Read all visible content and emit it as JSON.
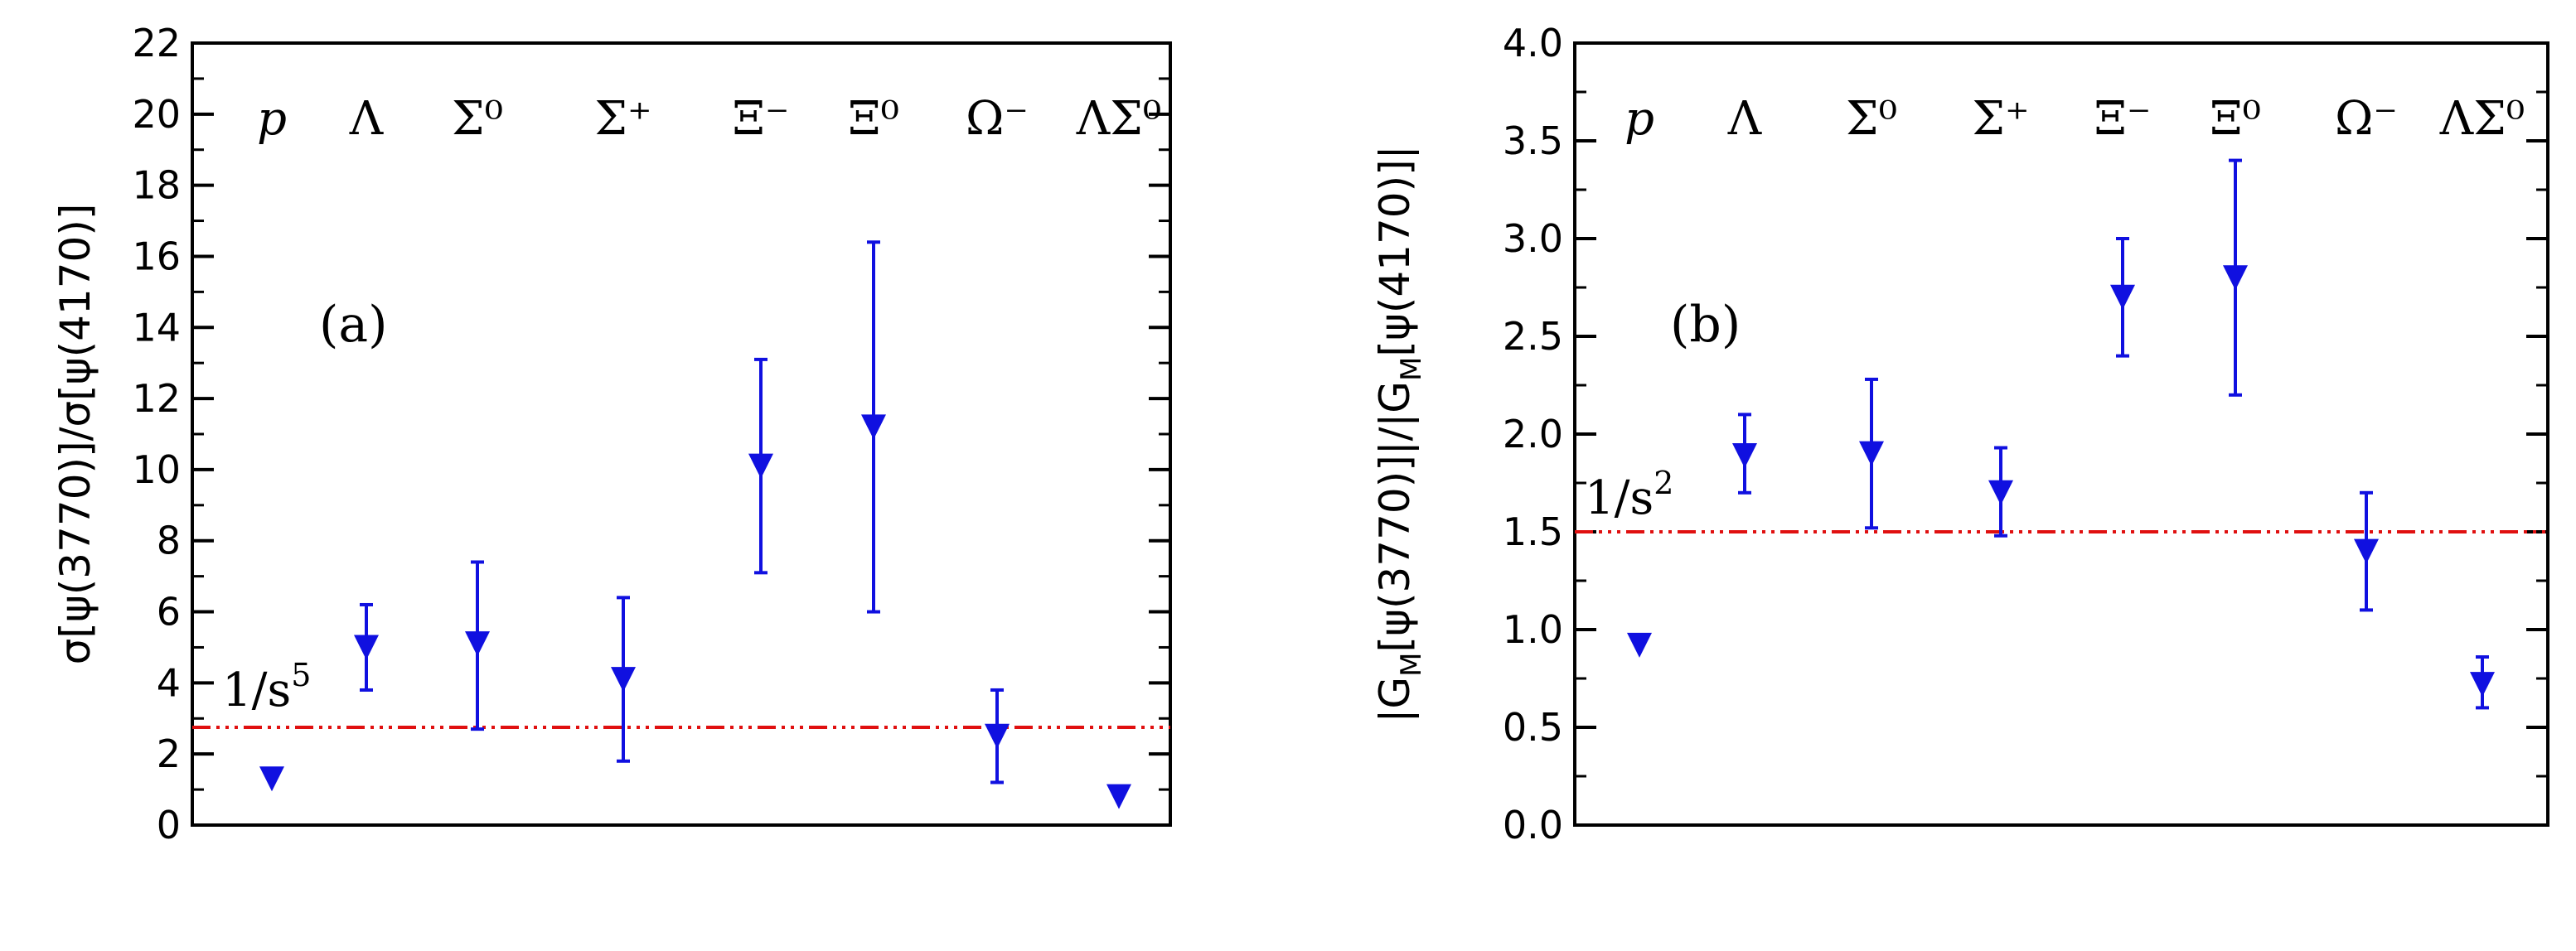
{
  "chart_data": [
    {
      "type": "scatter",
      "panel_label": "(a)",
      "ylabel": "σ[ψ(3770)]/σ[ψ(4170)]",
      "ylim": [
        0,
        22
      ],
      "yticks": [
        0,
        2,
        4,
        6,
        8,
        10,
        12,
        14,
        16,
        18,
        20,
        22
      ],
      "grid": false,
      "categories": [
        "p",
        "Λ",
        "Σ⁰",
        "Σ⁺",
        "Ξ⁻",
        "Ξ⁰",
        "Ω⁻",
        "ΛΣ⁰"
      ],
      "values": [
        1.3,
        5.0,
        5.1,
        4.1,
        10.1,
        11.2,
        2.5,
        0.8
      ],
      "err_low": [
        null,
        3.8,
        2.7,
        1.8,
        7.1,
        6.0,
        1.2,
        null
      ],
      "err_high": [
        null,
        6.2,
        7.4,
        6.4,
        13.1,
        16.4,
        3.8,
        null
      ],
      "reference_line": {
        "value": 2.75,
        "label_base": "1/s",
        "label_exp": "5"
      },
      "colors": {
        "marker": "#1010e0",
        "reference": "#e01010"
      }
    },
    {
      "type": "scatter",
      "panel_label": "(b)",
      "ylabel_main": "|G",
      "ylabel_sub": "M",
      "ylabel_mid": "[ψ(3770)]|/|G",
      "ylabel_sub2": "M",
      "ylabel_end": "[ψ(4170)]|",
      "ylim": [
        0,
        4
      ],
      "yticks": [
        "0.0",
        "0.5",
        "1.0",
        "1.5",
        "2.0",
        "2.5",
        "3.0",
        "3.5",
        "4.0"
      ],
      "grid": false,
      "categories": [
        "p",
        "Λ",
        "Σ⁰",
        "Σ⁺",
        "Ξ⁻",
        "Ξ⁰",
        "Ω⁻",
        "ΛΣ⁰"
      ],
      "values": [
        0.92,
        1.89,
        1.9,
        1.7,
        2.7,
        2.8,
        1.4,
        0.72
      ],
      "err_low": [
        null,
        1.7,
        1.52,
        1.48,
        2.4,
        2.2,
        1.1,
        0.6
      ],
      "err_high": [
        null,
        2.1,
        2.28,
        1.93,
        3.0,
        3.4,
        1.7,
        0.86
      ],
      "reference_line": {
        "value": 1.5,
        "label_base": "1/s",
        "label_exp": "2"
      },
      "colors": {
        "marker": "#1010e0",
        "reference": "#e01010"
      }
    }
  ]
}
